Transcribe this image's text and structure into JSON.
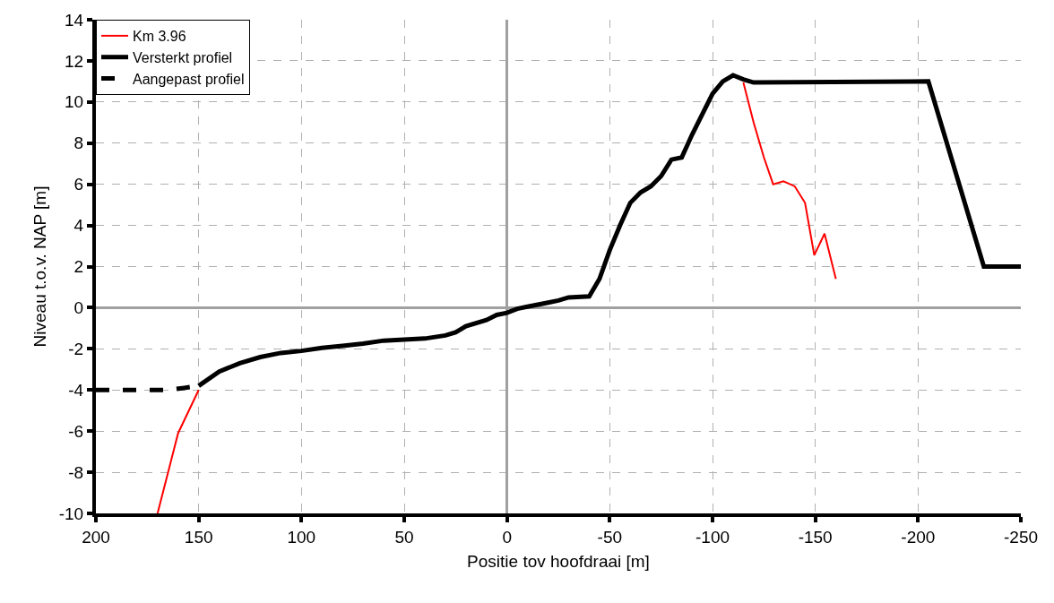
{
  "chart_data": {
    "type": "line",
    "xlabel": "Positie tov hoofdraai [m]",
    "ylabel": "Niveau t.o.v. NAP [m]",
    "xlim": [
      200,
      -250
    ],
    "xticks": [
      200,
      150,
      100,
      50,
      0,
      -50,
      -100,
      -150,
      -200,
      -250
    ],
    "ylim": [
      -10,
      14
    ],
    "yticks": [
      -10,
      -8,
      -6,
      -4,
      -2,
      0,
      2,
      4,
      6,
      8,
      10,
      12,
      14
    ],
    "grid": true,
    "legend": "top left",
    "marker": "none",
    "series": [
      {
        "name": "Km 3.96",
        "color": "#ff0000",
        "line_style": "solid",
        "x": [
          170,
          160,
          150,
          0,
          -115,
          -120,
          -125,
          -129.5,
          -134.5,
          -140,
          -145,
          -149.5,
          -154.5,
          -160
        ],
        "values": [
          -10,
          -6.1,
          -4,
          null,
          10.95,
          9,
          7.3,
          6,
          6.15,
          5.9,
          5.1,
          2.55,
          3.6,
          1.4
        ]
      },
      {
        "name": "Versterkt profiel",
        "color": "#000000",
        "line_style": "solid",
        "x": [
          150,
          140,
          130,
          120,
          110,
          100,
          90,
          80,
          70,
          60,
          50,
          40,
          30,
          25,
          20,
          10,
          5,
          0,
          -5,
          -10,
          -20,
          -25,
          -30,
          -40,
          -45,
          -50,
          -55,
          -60,
          -65,
          -70,
          -75,
          -80,
          -85,
          -90,
          -95,
          -100,
          -105,
          -110,
          -115,
          -120,
          -205,
          -232,
          -250
        ],
        "values": [
          -3.8,
          -3.1,
          -2.7,
          -2.4,
          -2.2,
          -2.1,
          -1.95,
          -1.85,
          -1.75,
          -1.6,
          -1.55,
          -1.5,
          -1.35,
          -1.2,
          -0.9,
          -0.6,
          -0.35,
          -0.25,
          -0.05,
          0.05,
          0.25,
          0.35,
          0.5,
          0.55,
          1.4,
          2.8,
          4,
          5.1,
          5.6,
          5.9,
          6.4,
          7.2,
          7.3,
          8.4,
          9.4,
          10.4,
          11,
          11.3,
          11.1,
          10.95,
          11,
          2,
          2
        ]
      },
      {
        "name": "Aangepast profiel",
        "color": "#000000",
        "line_style": "dashed",
        "x": [
          200,
          165,
          157,
          150
        ],
        "values": [
          -4,
          -4,
          -3.9,
          -3.8
        ]
      }
    ]
  }
}
